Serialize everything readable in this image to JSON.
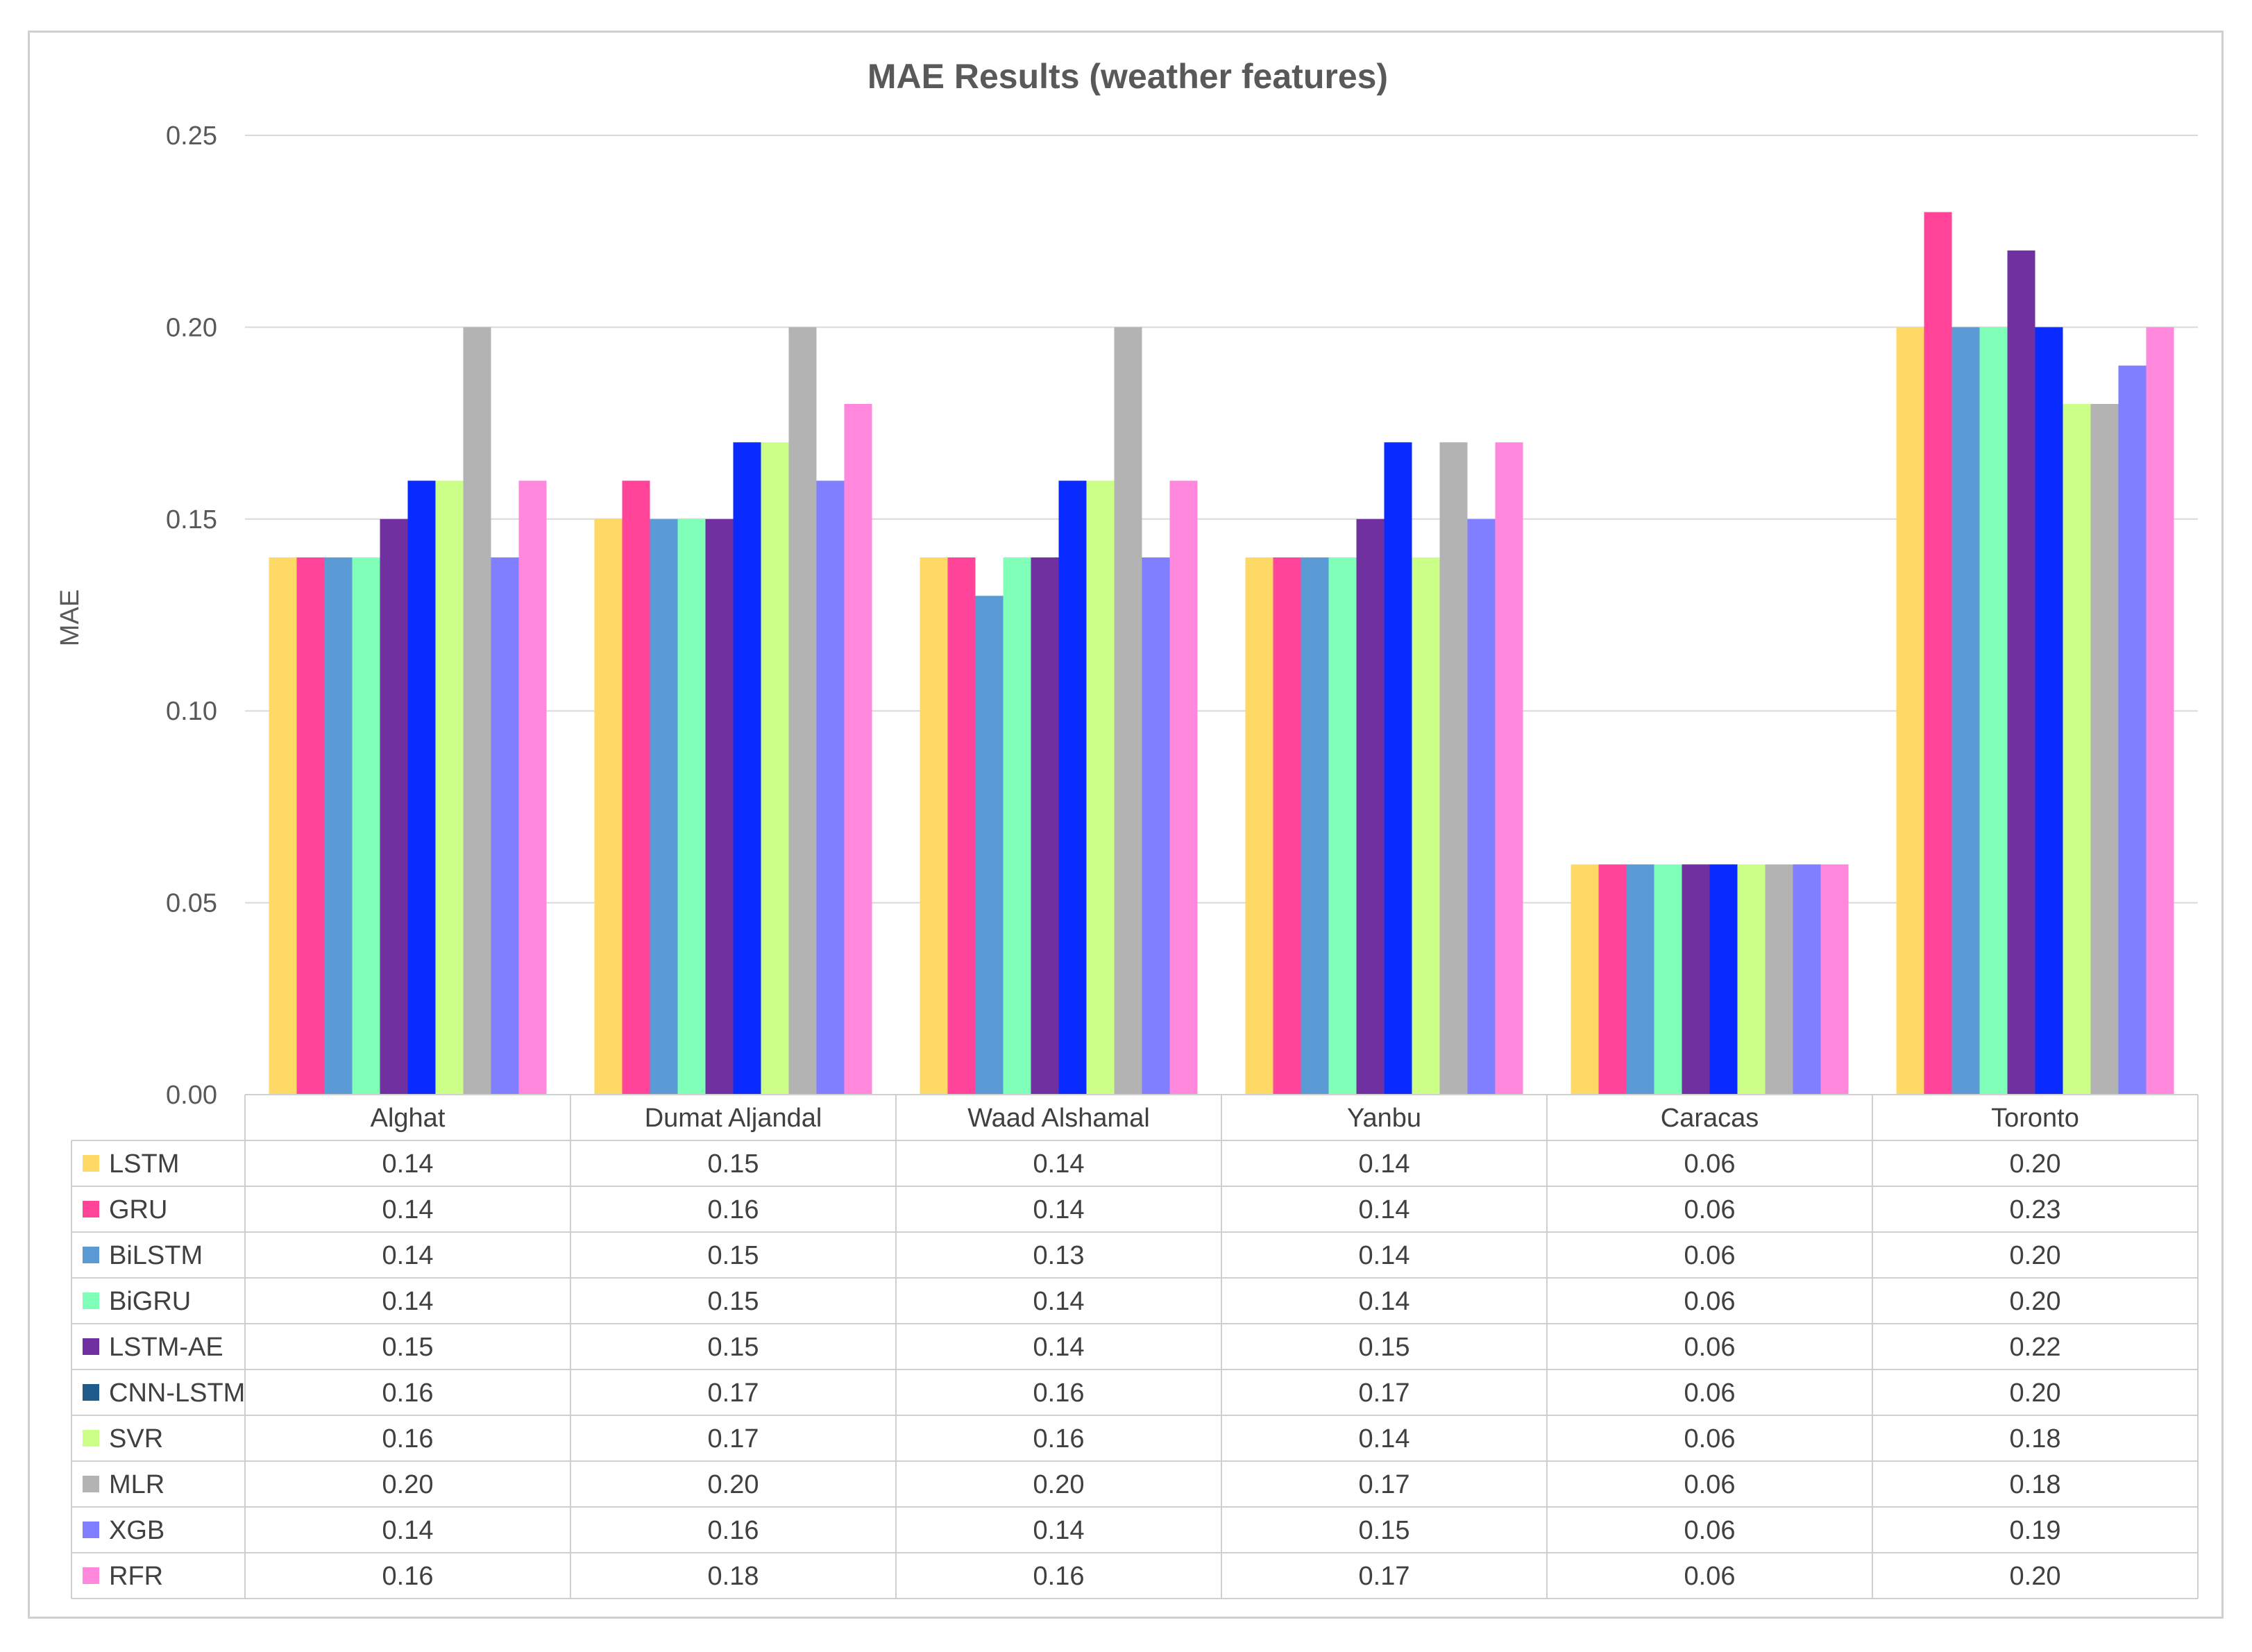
{
  "chart_data": {
    "type": "bar",
    "title": "MAE Results (weather features)",
    "ylabel": "MAE",
    "xlabel": "",
    "ylim": [
      0,
      0.25
    ],
    "yticks": [
      "0.00",
      "0.05",
      "0.10",
      "0.15",
      "0.20",
      "0.25"
    ],
    "grid": true,
    "legend": "data-table",
    "categories": [
      "Alghat",
      "Dumat Aljandal",
      "Waad Alshamal",
      "Yanbu",
      "Caracas",
      "Toronto"
    ],
    "series": [
      {
        "name": "LSTM",
        "color": "#FFD966",
        "values": [
          0.14,
          0.15,
          0.14,
          0.14,
          0.06,
          0.2
        ],
        "labels": [
          "0.14",
          "0.15",
          "0.14",
          "0.14",
          "0.06",
          "0.20"
        ]
      },
      {
        "name": "GRU",
        "color": "#FF4499",
        "values": [
          0.14,
          0.16,
          0.14,
          0.14,
          0.06,
          0.23
        ],
        "labels": [
          "0.14",
          "0.16",
          "0.14",
          "0.14",
          "0.06",
          "0.23"
        ]
      },
      {
        "name": "BiLSTM",
        "color": "#5B9BD5",
        "values": [
          0.14,
          0.15,
          0.13,
          0.14,
          0.06,
          0.2
        ],
        "labels": [
          "0.14",
          "0.15",
          "0.13",
          "0.14",
          "0.06",
          "0.20"
        ]
      },
      {
        "name": "BiGRU",
        "color": "#7FFFB8",
        "values": [
          0.14,
          0.15,
          0.14,
          0.14,
          0.06,
          0.2
        ],
        "labels": [
          "0.14",
          "0.15",
          "0.14",
          "0.14",
          "0.06",
          "0.20"
        ]
      },
      {
        "name": "LSTM-AE",
        "color": "#7030A0",
        "values": [
          0.15,
          0.15,
          0.14,
          0.15,
          0.06,
          0.22
        ],
        "labels": [
          "0.15",
          "0.15",
          "0.14",
          "0.15",
          "0.06",
          "0.22"
        ]
      },
      {
        "name": "CNN-LSTM",
        "color": "#0A2BFF",
        "legend_color": "#1F5C8C",
        "values": [
          0.16,
          0.17,
          0.16,
          0.17,
          0.06,
          0.2
        ],
        "labels": [
          "0.16",
          "0.17",
          "0.16",
          "0.17",
          "0.06",
          "0.20"
        ]
      },
      {
        "name": "SVR",
        "color": "#CCFF88",
        "values": [
          0.16,
          0.17,
          0.16,
          0.14,
          0.06,
          0.18
        ],
        "labels": [
          "0.16",
          "0.17",
          "0.16",
          "0.14",
          "0.06",
          "0.18"
        ]
      },
      {
        "name": "MLR",
        "color": "#B3B3B3",
        "values": [
          0.2,
          0.2,
          0.2,
          0.17,
          0.06,
          0.18
        ],
        "labels": [
          "0.20",
          "0.20",
          "0.20",
          "0.17",
          "0.06",
          "0.18"
        ]
      },
      {
        "name": "XGB",
        "color": "#7F7FFF",
        "values": [
          0.14,
          0.16,
          0.14,
          0.15,
          0.06,
          0.19
        ],
        "labels": [
          "0.14",
          "0.16",
          "0.14",
          "0.15",
          "0.06",
          "0.19"
        ]
      },
      {
        "name": "RFR",
        "color": "#FF88DD",
        "values": [
          0.16,
          0.18,
          0.16,
          0.17,
          0.06,
          0.2
        ],
        "labels": [
          "0.16",
          "0.18",
          "0.16",
          "0.17",
          "0.06",
          "0.20"
        ]
      }
    ]
  }
}
